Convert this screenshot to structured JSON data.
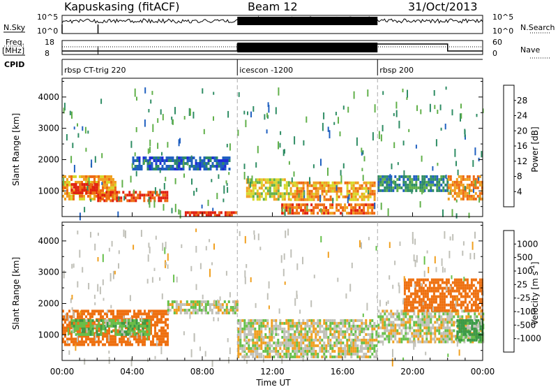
{
  "header": {
    "station": "Kapuskasing (fitACF)",
    "beam": "Beam 12",
    "date": "31/Oct/2013"
  },
  "strips": {
    "nsky_label": "N.Sky",
    "nsky_ticks": [
      "10^5",
      "10^0"
    ],
    "nsearch_label": "N.Search",
    "nsearch_ticks": [
      "10^5",
      "10^0"
    ],
    "freq_label_1": "Freq.",
    "freq_label_2": "[MHz]",
    "freq_ticks": [
      "18",
      "8"
    ],
    "nave_label": "Nave",
    "nave_ticks": [
      "60",
      "0"
    ],
    "cpid_label": "CPID"
  },
  "modes": [
    {
      "start_hour": 0,
      "end_hour": 10,
      "label": "rbsp CT-trig 220"
    },
    {
      "start_hour": 10,
      "end_hour": 18,
      "label": "icescon -1200"
    },
    {
      "start_hour": 18,
      "end_hour": 24,
      "label": "rbsp 200"
    }
  ],
  "axes": {
    "x_ticks": [
      "00:00",
      "04:00",
      "08:00",
      "12:00",
      "16:00",
      "20:00",
      "00:00"
    ],
    "x_label": "Time UT",
    "y_label": "Slant Range [km]",
    "y_ticks": [
      "1000",
      "2000",
      "3000",
      "4000"
    ]
  },
  "colorbars": {
    "power": {
      "label": "Power [dB]",
      "ticks": [
        "4",
        "8",
        "12",
        "16",
        "20",
        "24",
        "28"
      ],
      "colors": [
        "#1f2bd8",
        "#2060c0",
        "#2f8d64",
        "#61b04a",
        "#d7d72a",
        "#f0a020",
        "#ee6a12",
        "#e02010"
      ]
    },
    "velocity": {
      "label": "Velocity [m s",
      "label_sup": "-1",
      "label_end": "]",
      "ticks": [
        "1000",
        "500",
        "100",
        "25",
        "-25",
        "-100",
        "-500",
        "-1000"
      ],
      "colors": [
        "#1f3fc8",
        "#3a82a0",
        "#3a9a48",
        "#66c04a",
        "#c0c0b8",
        "#f0a020",
        "#ee7010",
        "#e03010",
        "#d80808"
      ]
    }
  },
  "chart_data": [
    {
      "type": "heatmap",
      "title": "Power [dB]",
      "x_range_hours": [
        0,
        24
      ],
      "ylim": [
        180,
        4600
      ],
      "xlabel": "Time UT",
      "ylabel": "Slant Range [km]",
      "regions": [
        {
          "t": [
            0.0,
            3.0
          ],
          "range_km": [
            700,
            1500
          ],
          "power_db": 20
        },
        {
          "t": [
            0.5,
            2.0
          ],
          "range_km": [
            950,
            1250
          ],
          "power_db": 28
        },
        {
          "t": [
            2.0,
            6.0
          ],
          "range_km": [
            700,
            1000
          ],
          "power_db": 26
        },
        {
          "t": [
            4.0,
            9.5
          ],
          "range_km": [
            1700,
            2100
          ],
          "power_db": 4
        },
        {
          "t": [
            7.0,
            10.0
          ],
          "range_km": [
            200,
            350
          ],
          "power_db": 28
        },
        {
          "t": [
            10.5,
            13.0
          ],
          "range_km": [
            700,
            1400
          ],
          "power_db": 16
        },
        {
          "t": [
            12.5,
            17.8
          ],
          "range_km": [
            300,
            600
          ],
          "power_db": 24
        },
        {
          "t": [
            13.0,
            17.8
          ],
          "range_km": [
            700,
            1300
          ],
          "power_db": 20
        },
        {
          "t": [
            18.0,
            22.0
          ],
          "range_km": [
            1000,
            1500
          ],
          "power_db": 8
        },
        {
          "t": [
            22.0,
            24.0
          ],
          "range_km": [
            700,
            1500
          ],
          "power_db": 22
        }
      ]
    },
    {
      "type": "heatmap",
      "title": "Velocity [m s-1]",
      "x_range_hours": [
        0,
        24
      ],
      "ylim": [
        180,
        4600
      ],
      "xlabel": "Time UT",
      "ylabel": "Slant Range [km]",
      "regions": [
        {
          "t": [
            0.0,
            6.0
          ],
          "range_km": [
            700,
            1800
          ],
          "velocity": -200
        },
        {
          "t": [
            0.5,
            5.0
          ],
          "range_km": [
            1000,
            1500
          ],
          "velocity": 80
        },
        {
          "t": [
            6.0,
            10.0
          ],
          "range_km": [
            1700,
            2100
          ],
          "velocity": 0
        },
        {
          "t": [
            10.0,
            18.0
          ],
          "range_km": [
            300,
            1500
          ],
          "velocity": 0
        },
        {
          "t": [
            18.0,
            24.0
          ],
          "range_km": [
            800,
            1800
          ],
          "velocity": 0
        },
        {
          "t": [
            19.5,
            24.0
          ],
          "range_km": [
            1800,
            2800
          ],
          "velocity": -300
        },
        {
          "t": [
            22.5,
            24.0
          ],
          "range_km": [
            800,
            1500
          ],
          "velocity": 150
        }
      ]
    }
  ]
}
